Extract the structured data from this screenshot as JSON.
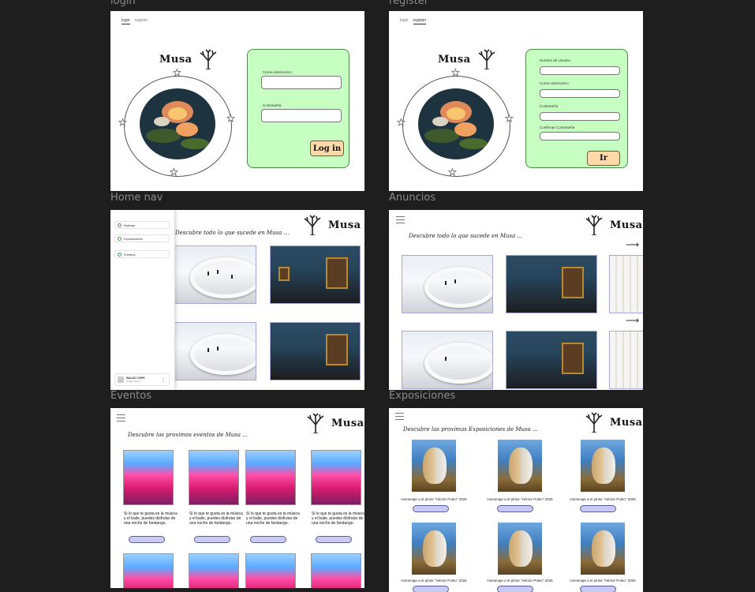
{
  "frames": {
    "login": "login",
    "register": "register",
    "home_nav": "Home nav",
    "anuncios": "Anuncios",
    "eventos": "Eventos",
    "exposiciones": "Exposiciones"
  },
  "brand": "Musa",
  "auth_tabs": {
    "login": "login",
    "register": "register"
  },
  "login": {
    "email_label": "Correo electronico",
    "password_label": "Contraseña",
    "button": "Log in"
  },
  "register": {
    "name_label": "Nombre de Usuario",
    "email_label": "Correo electronico",
    "password_label": "Contraseña",
    "confirm_label": "Confirmar Contraseña",
    "button": "Ir"
  },
  "home": {
    "tagline": "Descubre todo lo que sucede en Musa ...",
    "nav": [
      {
        "label": "Noticias"
      },
      {
        "label": "Exposiciones"
      },
      {
        "label": "Eventos"
      }
    ],
    "user_name": "WALDO CHPE",
    "user_role": "Prodg. Admin"
  },
  "anuncios": {
    "tagline": "Descubre todo lo que sucede en Musa ..."
  },
  "eventos": {
    "tagline": "Descubre los proximos eventos de Musa ...",
    "card_text": "Si lo que te gusta es la música y el baile, puedes disfrutar de una noche de fandango."
  },
  "exposiciones": {
    "tagline": "Descubre las proximas Exposiciones de Musa ...",
    "caption": "Homenaje  a el pintor \"Héctor Poleo\" 2025"
  },
  "colors": {
    "panel": "#c7ffc2",
    "button": "#ffd9a8",
    "pill": "#c8c9f5",
    "background": "#1e1e1e"
  }
}
